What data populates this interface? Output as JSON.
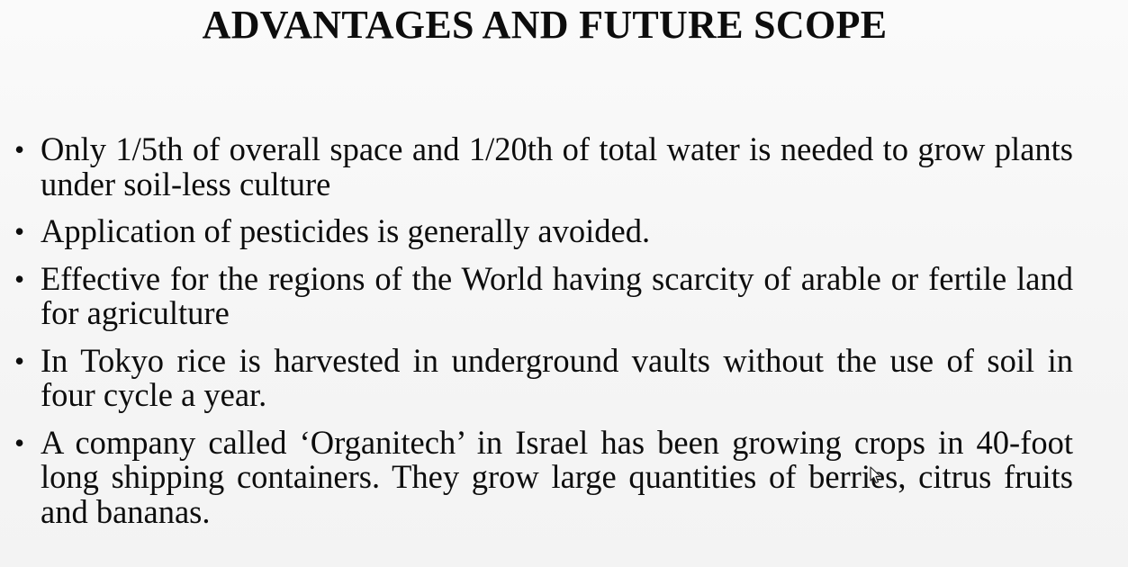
{
  "slide": {
    "title": "ADVANTAGES AND FUTURE SCOPE",
    "bullet_glyph": "•",
    "bullets": [
      "Only 1/5th of overall space and 1/20th of total water is needed to grow plants under soil-less culture",
      "Application of pesticides is generally avoided.",
      "Effective for the regions of the World having scarcity of arable or fertile land for agriculture",
      "In Tokyo rice is harvested in underground vaults without the use of soil in four cycle a year.",
      "A company called ‘Organitech’ in Israel has been growing crops in 40-foot long shipping containers. They grow large quantities of berries, citrus fruits and bananas."
    ]
  },
  "icons": {
    "pointer": "mouse-pointer-icon"
  }
}
